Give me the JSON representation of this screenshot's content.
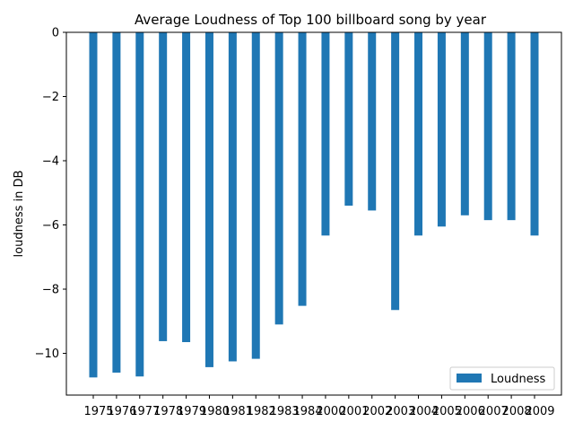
{
  "chart_data": {
    "type": "bar",
    "title": "Average Loudness of Top 100 billboard song by year",
    "xlabel": "",
    "ylabel": "loudness in DB",
    "categories": [
      "1975",
      "1976",
      "1977",
      "1978",
      "1979",
      "1980",
      "1981",
      "1982",
      "1983",
      "1984",
      "2000",
      "2001",
      "2002",
      "2003",
      "2004",
      "2005",
      "2006",
      "2007",
      "2008",
      "2009"
    ],
    "series": [
      {
        "name": "Loudness",
        "color": "#1f77b4",
        "values": [
          -10.75,
          -10.6,
          -10.72,
          -9.62,
          -9.65,
          -10.43,
          -10.25,
          -10.17,
          -9.1,
          -8.52,
          -6.33,
          -5.4,
          -5.55,
          -8.65,
          -6.33,
          -6.05,
          -5.7,
          -5.85,
          -5.85,
          -6.33
        ]
      }
    ],
    "ylim": [
      -11.3,
      0
    ],
    "yticks": [
      0,
      -2,
      -4,
      -6,
      -8,
      -10
    ],
    "grid": false,
    "legend_position": "lower-right"
  }
}
